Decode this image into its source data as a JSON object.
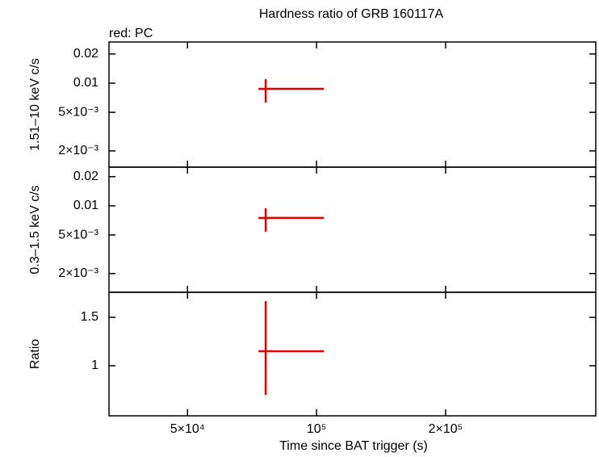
{
  "chart_data": [
    {
      "type": "errorbar",
      "title": "Hardness ratio of GRB 160117A",
      "subtitle": "red: PC",
      "ylabel": "1.51–10 keV c/s",
      "xlog": true,
      "ylog": true,
      "xlim": [
        32800,
        448000
      ],
      "ylim": [
        0.00136,
        0.0266
      ],
      "yticks": [
        {
          "value": 0.002,
          "label": "2×10⁻³"
        },
        {
          "value": 0.005,
          "label": "5×10⁻³"
        },
        0.01,
        0.02
      ],
      "series": [
        {
          "color": "#e00000",
          "x": [
            76100
          ],
          "x_err_minus": [
            2900
          ],
          "x_err_plus": [
            27900
          ],
          "values": [
            0.00874
          ],
          "y_err_minus": [
            0.00243
          ],
          "y_err_plus": [
            0.00226
          ]
        }
      ]
    },
    {
      "type": "errorbar",
      "ylabel": "0.3–1.5 keV c/s",
      "xlog": true,
      "ylog": true,
      "xlim": [
        32800,
        448000
      ],
      "ylim": [
        0.00128,
        0.0251
      ],
      "yticks": [
        {
          "value": 0.002,
          "label": "2×10⁻³"
        },
        {
          "value": 0.005,
          "label": "5×10⁻³"
        },
        0.01,
        0.02
      ],
      "series": [
        {
          "color": "#e00000",
          "x": [
            76100
          ],
          "x_err_minus": [
            2900
          ],
          "x_err_plus": [
            27900
          ],
          "values": [
            0.0075
          ],
          "y_err_minus": [
            0.00209
          ],
          "y_err_plus": [
            0.00194
          ]
        }
      ]
    },
    {
      "type": "errorbar",
      "ylabel": "Ratio",
      "xlabel": "Time since BAT trigger (s)",
      "xlog": true,
      "ylog": false,
      "xlim": [
        32800,
        448000
      ],
      "ylim": [
        0.483,
        1.758
      ],
      "xticks": [
        {
          "value": 50000,
          "label": "5×10⁴"
        },
        {
          "value": 100000,
          "label": "10⁵"
        },
        {
          "value": 200000,
          "label": "2×10⁵"
        }
      ],
      "yticks": [
        1,
        1.5
      ],
      "series": [
        {
          "color": "#e00000",
          "x": [
            76100
          ],
          "x_err_minus": [
            2900
          ],
          "x_err_plus": [
            27900
          ],
          "values": [
            1.15
          ],
          "y_err_minus": [
            0.45
          ],
          "y_err_plus": [
            0.517
          ]
        }
      ]
    }
  ]
}
